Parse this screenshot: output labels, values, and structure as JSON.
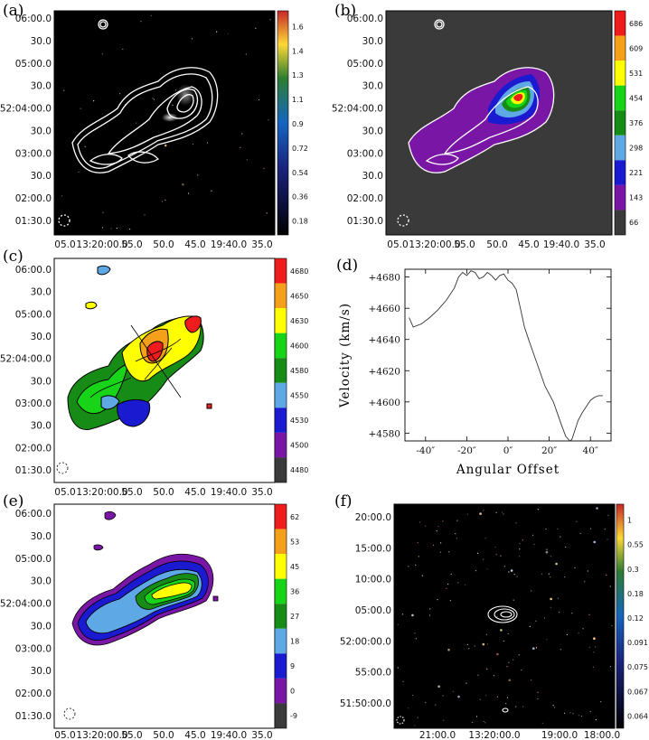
{
  "panels": [
    {
      "id": "a",
      "label": "(a)"
    },
    {
      "id": "b",
      "label": "(b)"
    },
    {
      "id": "c",
      "label": "(c)"
    },
    {
      "id": "d",
      "label": "(d)"
    },
    {
      "id": "e",
      "label": "(e)"
    },
    {
      "id": "f",
      "label": "(f)"
    }
  ],
  "chart_data": [
    {
      "panel": "a",
      "type": "heatmap",
      "yticks": [
        "06:00.0",
        "30.0",
        "05:00.0",
        "30.0",
        "52:04:00.0",
        "30.0",
        "03:00.0",
        "30.0",
        "02:00.0",
        "01:30.0"
      ],
      "xticks": [
        "05.0",
        "13:20:00.0",
        "55.0",
        "50.0",
        "45.0",
        "19:40.0",
        "35.0"
      ],
      "colorbar_ticks": [
        "1.6",
        "1.4",
        "1.3",
        "1.1",
        "0.9",
        "0.72",
        "0.54",
        "0.36",
        "0.18"
      ]
    },
    {
      "panel": "b",
      "type": "heatmap",
      "yticks": [
        "06:00.0",
        "30.0",
        "05:00.0",
        "30.0",
        "52:04:00.0",
        "30.0",
        "03:00.0",
        "30.0",
        "02:00.0",
        "01:30.0"
      ],
      "xticks": [
        "05.0",
        "13:20:00.0",
        "55.0",
        "50.0",
        "45.0",
        "19:40.0",
        "35.0"
      ],
      "colorbar_ticks": [
        "686",
        "609",
        "531",
        "454",
        "376",
        "298",
        "221",
        "143",
        "66"
      ],
      "colorbar_colors": [
        "#ee1c1c",
        "#f5a01a",
        "#ffff00",
        "#18d418",
        "#168c16",
        "#5fa8e6",
        "#1a1ad0",
        "#7a16a6",
        "#3a3a3a"
      ]
    },
    {
      "panel": "c",
      "type": "heatmap",
      "yticks": [
        "06:00.0",
        "30.0",
        "05:00.0",
        "30.0",
        "52:04:00.0",
        "30.0",
        "03:00.0",
        "30.0",
        "02:00.0",
        "01:30.0"
      ],
      "xticks": [
        "05.0",
        "13:20:00.0",
        "55.0",
        "50.0",
        "45.0",
        "19:40.0",
        "35.0"
      ],
      "colorbar_ticks": [
        "4680",
        "4650",
        "4630",
        "4600",
        "4580",
        "4550",
        "4530",
        "4500",
        "4480"
      ],
      "colorbar_colors": [
        "#ee1c1c",
        "#f5a01a",
        "#ffff00",
        "#18d418",
        "#168c16",
        "#5fa8e6",
        "#1a1ad0",
        "#7a16a6",
        "#3a3a3a"
      ]
    },
    {
      "panel": "d",
      "type": "line",
      "xlabel": "Angular Offset",
      "ylabel": "Velocity (km/s)",
      "xlim": [
        -50,
        50
      ],
      "ylim": [
        4575,
        4685
      ],
      "xticks": [
        "-40″",
        "-20″",
        "0″",
        "20″",
        "40″"
      ],
      "xtick_values": [
        -40,
        -20,
        0,
        20,
        40
      ],
      "yticks": [
        "+4680",
        "+4660",
        "+4640",
        "+4620",
        "+4600",
        "+4580"
      ],
      "ytick_values": [
        4680,
        4660,
        4640,
        4620,
        4600,
        4580
      ],
      "x": [
        -48,
        -46,
        -42,
        -38,
        -34,
        -30,
        -26,
        -24,
        -22,
        -20,
        -18,
        -16,
        -14,
        -12,
        -10,
        -8,
        -6,
        -4,
        -2,
        0,
        2,
        4,
        6,
        8,
        10,
        14,
        18,
        22,
        26,
        28,
        30,
        31,
        32,
        34,
        36,
        38,
        40,
        42,
        44,
        46
      ],
      "y": [
        4654,
        4648,
        4650,
        4654,
        4659,
        4665,
        4673,
        4680,
        4683,
        4681,
        4684,
        4683,
        4679,
        4680,
        4683,
        4681,
        4678,
        4681,
        4682,
        4678,
        4676,
        4672,
        4660,
        4648,
        4640,
        4625,
        4610,
        4600,
        4585,
        4578,
        4575,
        4576,
        4580,
        4588,
        4593,
        4597,
        4601,
        4603,
        4604,
        4604
      ]
    },
    {
      "panel": "e",
      "type": "heatmap",
      "yticks": [
        "06:00.0",
        "30.0",
        "05:00.0",
        "30.0",
        "52:04:00.0",
        "30.0",
        "03:00.0",
        "30.0",
        "02:00.0",
        "01:30.0"
      ],
      "xticks": [
        "05.0",
        "13:20:00.0",
        "55.0",
        "50.0",
        "45.0",
        "19:40.0",
        "35.0"
      ],
      "colorbar_ticks": [
        "62",
        "53",
        "45",
        "36",
        "27",
        "18",
        "9",
        "0",
        "-9"
      ],
      "colorbar_colors": [
        "#ee1c1c",
        "#f5a01a",
        "#ffff00",
        "#18d418",
        "#168c16",
        "#5fa8e6",
        "#1a1ad0",
        "#7a16a6",
        "#3a3a3a"
      ]
    },
    {
      "panel": "f",
      "type": "heatmap",
      "yticks": [
        "20:00.0",
        "15:00.0",
        "10:00.0",
        "05:00.0",
        "52:00:00.0",
        "55:00.0",
        "51:50:00.0"
      ],
      "xticks": [
        "21:00.0",
        "13:20:00.0",
        "19:00.0",
        "18:00.0"
      ],
      "colorbar_ticks": [
        "1",
        "0.55",
        "0.3",
        "0.18",
        "0.12",
        "0.091",
        "0.075",
        "0.067",
        "0.064"
      ]
    }
  ]
}
